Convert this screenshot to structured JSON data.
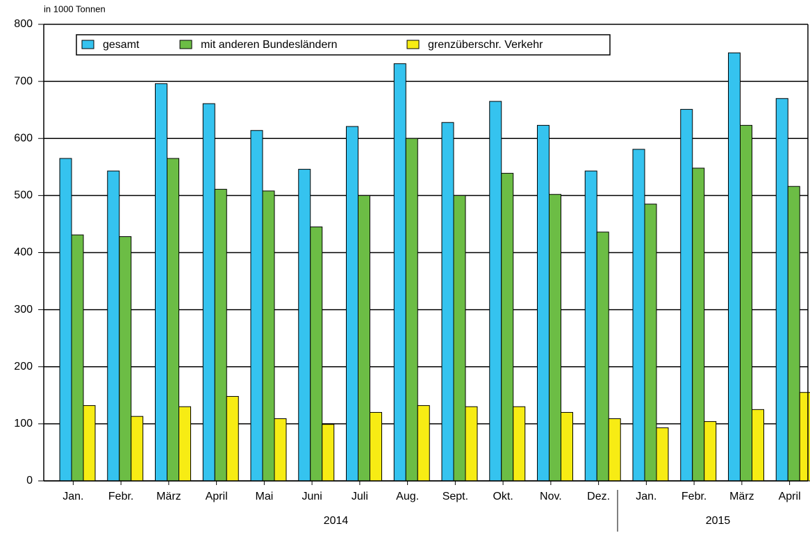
{
  "chart_data": {
    "type": "bar",
    "y_axis_label": "in 1000 Tonnen",
    "categories": [
      "Jan.",
      "Febr.",
      "März",
      "April",
      "Mai",
      "Juni",
      "Juli",
      "Aug.",
      "Sept.",
      "Okt.",
      "Nov.",
      "Dez.",
      "Jan.",
      "Febr.",
      "März",
      "April"
    ],
    "x_groups": [
      {
        "label": "2014",
        "count": 12
      },
      {
        "label": "2015",
        "count": 4
      }
    ],
    "series": [
      {
        "name": "gesamt",
        "color": "#35c3ef",
        "values": [
          565,
          543,
          696,
          661,
          614,
          546,
          621,
          731,
          628,
          665,
          623,
          543,
          581,
          651,
          750,
          670
        ]
      },
      {
        "name": "mit anderen Bundesländern",
        "color": "#6cbd45",
        "values": [
          431,
          428,
          565,
          511,
          508,
          445,
          500,
          600,
          500,
          539,
          502,
          436,
          485,
          548,
          623,
          516
        ]
      },
      {
        "name": "grenzüberschr. Verkehr",
        "color": "#f7ec14",
        "values": [
          132,
          113,
          130,
          148,
          109,
          99,
          120,
          132,
          130,
          130,
          120,
          109,
          93,
          104,
          125,
          155
        ]
      }
    ],
    "ylim": [
      0,
      800
    ],
    "yticks": [
      0,
      100,
      200,
      300,
      400,
      500,
      600,
      700,
      800
    ],
    "grid": true,
    "legend": "top-left"
  }
}
